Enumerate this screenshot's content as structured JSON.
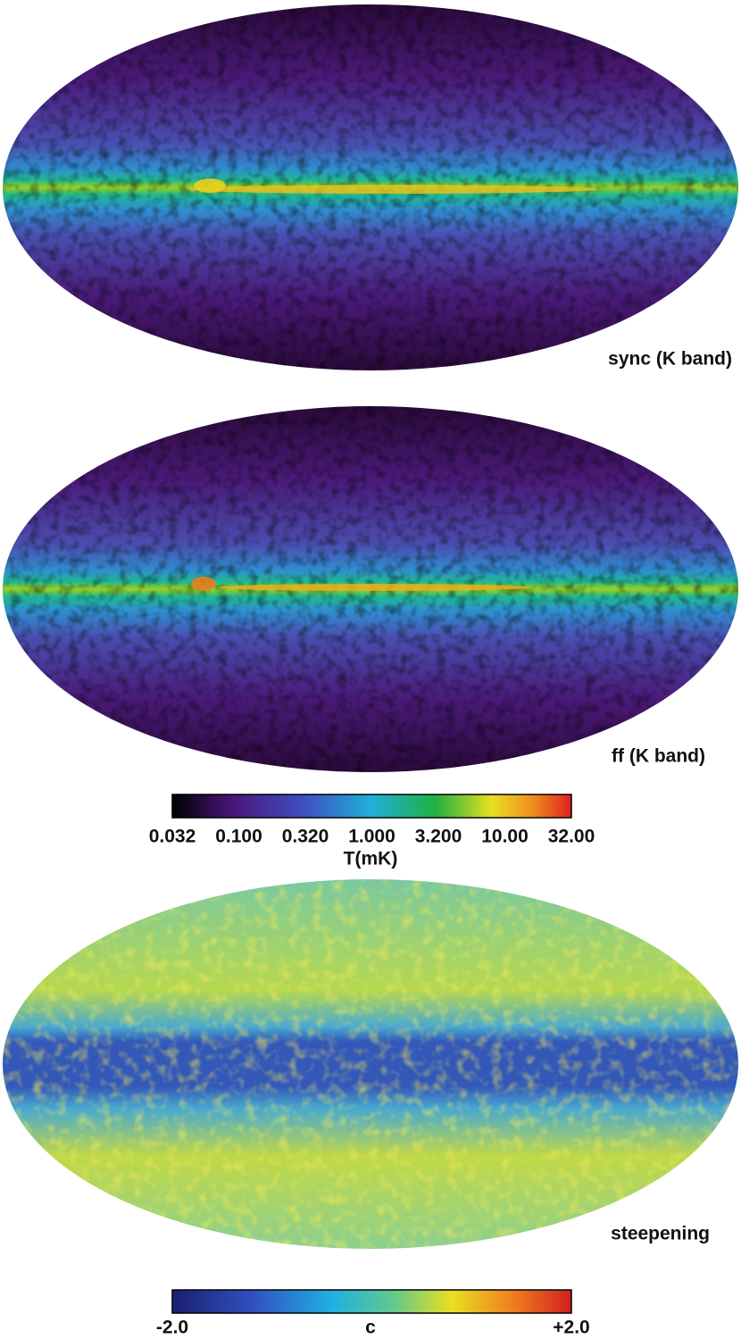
{
  "panels": [
    {
      "label": "sync (K band)"
    },
    {
      "label": "ff (K band)"
    },
    {
      "label": "steepening"
    }
  ],
  "colorbars": [
    {
      "ticks": [
        "0.032",
        "0.100",
        "0.320",
        "1.000",
        "3.200",
        "10.00",
        "32.00"
      ],
      "title": "T(mK)"
    },
    {
      "ticks": [
        "-2.0",
        "+2.0"
      ],
      "title": "c"
    }
  ]
}
